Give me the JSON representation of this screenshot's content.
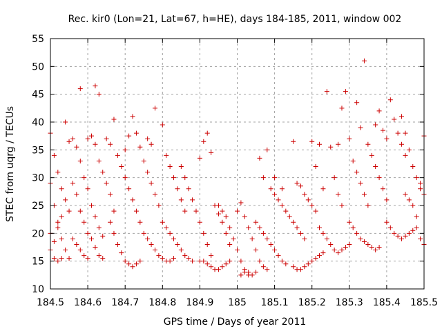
{
  "chart_data": {
    "type": "scatter",
    "title": "Rec. kir0 (Lon=21, Lat=67, h=HE), days 184-185, 2011, window 002",
    "xlabel": "GPS time / Days of year 2011",
    "ylabel": "STEC from uqrg / TECUs",
    "xlim": [
      184.5,
      185.5
    ],
    "ylim": [
      10,
      55
    ],
    "xticks": [
      "184.5",
      "184.6",
      "184.7",
      "184.8",
      "184.9",
      "185",
      "185.1",
      "185.2",
      "185.3",
      "185.4",
      "185.5"
    ],
    "yticks": [
      "10",
      "15",
      "20",
      "25",
      "30",
      "35",
      "40",
      "45",
      "50",
      "55"
    ],
    "grid": true,
    "marker": "plus",
    "point_color": "#cc0000",
    "series": [
      {
        "points": [
          [
            184.5,
            38
          ],
          [
            184.51,
            34
          ],
          [
            184.52,
            31
          ],
          [
            184.53,
            28
          ],
          [
            184.54,
            26
          ],
          [
            184.55,
            24
          ],
          [
            184.5,
            29
          ],
          [
            184.51,
            25
          ],
          [
            184.52,
            22
          ],
          [
            184.53,
            19
          ],
          [
            184.54,
            17
          ],
          [
            184.55,
            15.5
          ],
          [
            184.5,
            17
          ],
          [
            184.51,
            15.5
          ],
          [
            184.52,
            15
          ],
          [
            184.53,
            15.5
          ],
          [
            184.5,
            20
          ],
          [
            184.51,
            18.5
          ],
          [
            184.52,
            21
          ],
          [
            184.53,
            23
          ],
          [
            184.54,
            40
          ],
          [
            184.55,
            36.5
          ],
          [
            184.56,
            37
          ],
          [
            184.57,
            35.5
          ],
          [
            184.58,
            33
          ],
          [
            184.59,
            30
          ],
          [
            184.6,
            28
          ],
          [
            184.61,
            25
          ],
          [
            184.62,
            23
          ],
          [
            184.63,
            21
          ],
          [
            184.64,
            19.5
          ],
          [
            184.56,
            29
          ],
          [
            184.57,
            27
          ],
          [
            184.58,
            24
          ],
          [
            184.59,
            22
          ],
          [
            184.6,
            20
          ],
          [
            184.61,
            19
          ],
          [
            184.62,
            17.5
          ],
          [
            184.63,
            16
          ],
          [
            184.64,
            15.5
          ],
          [
            184.56,
            19
          ],
          [
            184.57,
            18
          ],
          [
            184.58,
            17
          ],
          [
            184.59,
            16
          ],
          [
            184.6,
            15.5
          ],
          [
            184.58,
            46
          ],
          [
            184.62,
            46.5
          ],
          [
            184.63,
            45
          ],
          [
            184.6,
            37
          ],
          [
            184.61,
            37.5
          ],
          [
            184.62,
            36
          ],
          [
            184.63,
            33
          ],
          [
            184.64,
            31
          ],
          [
            184.65,
            29
          ],
          [
            184.66,
            27
          ],
          [
            184.67,
            24
          ],
          [
            184.65,
            37
          ],
          [
            184.66,
            36
          ],
          [
            184.67,
            40.5
          ],
          [
            184.68,
            34
          ],
          [
            184.69,
            32
          ],
          [
            184.7,
            30
          ],
          [
            184.71,
            28
          ],
          [
            184.72,
            26
          ],
          [
            184.73,
            24
          ],
          [
            184.74,
            22
          ],
          [
            184.66,
            22
          ],
          [
            184.67,
            20
          ],
          [
            184.68,
            18
          ],
          [
            184.69,
            16.5
          ],
          [
            184.7,
            15
          ],
          [
            184.71,
            14.5
          ],
          [
            184.72,
            14
          ],
          [
            184.73,
            14.5
          ],
          [
            184.74,
            15
          ],
          [
            184.7,
            35
          ],
          [
            184.71,
            37.5
          ],
          [
            184.72,
            41
          ],
          [
            184.73,
            38
          ],
          [
            184.74,
            35.5
          ],
          [
            184.75,
            33
          ],
          [
            184.76,
            31
          ],
          [
            184.77,
            29
          ],
          [
            184.78,
            27
          ],
          [
            184.79,
            25
          ],
          [
            184.75,
            20
          ],
          [
            184.76,
            19
          ],
          [
            184.77,
            18
          ],
          [
            184.78,
            17
          ],
          [
            184.79,
            16
          ],
          [
            184.8,
            15.5
          ],
          [
            184.81,
            15
          ],
          [
            184.82,
            15
          ],
          [
            184.83,
            15.5
          ],
          [
            184.76,
            37
          ],
          [
            184.77,
            36
          ],
          [
            184.78,
            42.5
          ],
          [
            184.8,
            39.5
          ],
          [
            184.81,
            34
          ],
          [
            184.82,
            32
          ],
          [
            184.83,
            30
          ],
          [
            184.84,
            28
          ],
          [
            184.85,
            26
          ],
          [
            184.86,
            24
          ],
          [
            184.8,
            22
          ],
          [
            184.81,
            21
          ],
          [
            184.82,
            20
          ],
          [
            184.83,
            19
          ],
          [
            184.84,
            18
          ],
          [
            184.85,
            17
          ],
          [
            184.86,
            16
          ],
          [
            184.87,
            15.5
          ],
          [
            184.88,
            15
          ],
          [
            184.85,
            32
          ],
          [
            184.86,
            30
          ],
          [
            184.87,
            28
          ],
          [
            184.88,
            26
          ],
          [
            184.89,
            24
          ],
          [
            184.9,
            22
          ],
          [
            184.91,
            20
          ],
          [
            184.92,
            18
          ],
          [
            184.93,
            16
          ],
          [
            184.9,
            33.5
          ],
          [
            184.91,
            36.5
          ],
          [
            184.92,
            38
          ],
          [
            184.93,
            34.5
          ],
          [
            184.94,
            25
          ],
          [
            184.95,
            23.5
          ],
          [
            184.96,
            22
          ],
          [
            184.97,
            20
          ],
          [
            184.98,
            18
          ],
          [
            184.9,
            15
          ],
          [
            184.91,
            15
          ],
          [
            184.92,
            14.5
          ],
          [
            184.93,
            14
          ],
          [
            184.94,
            13.5
          ],
          [
            184.95,
            13.5
          ],
          [
            184.96,
            14
          ],
          [
            184.97,
            14.5
          ],
          [
            184.98,
            15
          ],
          [
            184.95,
            25
          ],
          [
            184.96,
            24
          ],
          [
            184.97,
            23
          ],
          [
            184.98,
            21
          ],
          [
            184.99,
            19
          ],
          [
            185.0,
            17
          ],
          [
            185.01,
            15
          ],
          [
            185.02,
            13.5
          ],
          [
            185.03,
            13
          ],
          [
            185.0,
            24
          ],
          [
            185.01,
            25.5
          ],
          [
            185.02,
            23
          ],
          [
            185.03,
            21
          ],
          [
            185.04,
            19
          ],
          [
            185.05,
            17
          ],
          [
            185.06,
            15
          ],
          [
            185.07,
            14
          ],
          [
            185.08,
            13.5
          ],
          [
            185.01,
            12.5
          ],
          [
            185.02,
            13
          ],
          [
            185.03,
            12.5
          ],
          [
            185.04,
            12.5
          ],
          [
            185.05,
            13
          ],
          [
            185.06,
            33.5
          ],
          [
            185.07,
            30
          ],
          [
            185.08,
            35
          ],
          [
            185.09,
            28
          ],
          [
            185.05,
            22
          ],
          [
            185.06,
            21
          ],
          [
            185.07,
            20
          ],
          [
            185.08,
            19
          ],
          [
            185.09,
            18
          ],
          [
            185.1,
            17
          ],
          [
            185.11,
            16
          ],
          [
            185.12,
            15
          ],
          [
            185.13,
            14.5
          ],
          [
            185.1,
            27
          ],
          [
            185.11,
            26
          ],
          [
            185.12,
            25
          ],
          [
            185.13,
            24
          ],
          [
            185.14,
            23
          ],
          [
            185.15,
            22
          ],
          [
            185.16,
            21
          ],
          [
            185.17,
            20
          ],
          [
            185.18,
            19
          ],
          [
            185.1,
            30
          ],
          [
            185.12,
            28
          ],
          [
            185.15,
            36.5
          ],
          [
            185.16,
            29
          ],
          [
            185.17,
            28.5
          ],
          [
            185.18,
            27
          ],
          [
            185.19,
            26
          ],
          [
            185.2,
            25
          ],
          [
            185.21,
            24
          ],
          [
            185.15,
            14
          ],
          [
            185.16,
            13.5
          ],
          [
            185.17,
            13.5
          ],
          [
            185.18,
            14
          ],
          [
            185.19,
            14.5
          ],
          [
            185.2,
            15
          ],
          [
            185.21,
            15.5
          ],
          [
            185.22,
            16
          ],
          [
            185.23,
            16.5
          ],
          [
            185.2,
            36.5
          ],
          [
            185.21,
            32
          ],
          [
            185.22,
            36
          ],
          [
            185.23,
            28
          ],
          [
            185.24,
            45.5
          ],
          [
            185.25,
            35.5
          ],
          [
            185.26,
            30
          ],
          [
            185.27,
            27
          ],
          [
            185.28,
            25
          ],
          [
            185.22,
            21
          ],
          [
            185.23,
            20
          ],
          [
            185.24,
            19
          ],
          [
            185.25,
            18
          ],
          [
            185.26,
            17
          ],
          [
            185.27,
            16.5
          ],
          [
            185.28,
            17
          ],
          [
            185.29,
            17.5
          ],
          [
            185.3,
            18
          ],
          [
            185.27,
            36
          ],
          [
            185.28,
            42.5
          ],
          [
            185.29,
            45.5
          ],
          [
            185.3,
            37
          ],
          [
            185.31,
            33
          ],
          [
            185.32,
            31
          ],
          [
            185.33,
            29
          ],
          [
            185.34,
            27
          ],
          [
            185.35,
            25
          ],
          [
            185.3,
            22
          ],
          [
            185.31,
            21
          ],
          [
            185.32,
            20
          ],
          [
            185.33,
            19
          ],
          [
            185.34,
            18.5
          ],
          [
            185.35,
            18
          ],
          [
            185.36,
            17.5
          ],
          [
            185.37,
            17
          ],
          [
            185.38,
            17.5
          ],
          [
            185.32,
            43.5
          ],
          [
            185.33,
            39
          ],
          [
            185.34,
            51
          ],
          [
            185.35,
            36
          ],
          [
            185.36,
            34
          ],
          [
            185.37,
            32
          ],
          [
            185.38,
            30
          ],
          [
            185.39,
            28
          ],
          [
            185.4,
            26
          ],
          [
            185.37,
            39.5
          ],
          [
            185.38,
            42
          ],
          [
            185.39,
            38.5
          ],
          [
            185.4,
            37
          ],
          [
            185.41,
            44
          ],
          [
            185.42,
            40.5
          ],
          [
            185.43,
            38
          ],
          [
            185.44,
            36
          ],
          [
            185.45,
            34
          ],
          [
            185.4,
            22
          ],
          [
            185.41,
            21
          ],
          [
            185.42,
            20
          ],
          [
            185.43,
            19.5
          ],
          [
            185.44,
            19
          ],
          [
            185.45,
            19.5
          ],
          [
            185.46,
            20
          ],
          [
            185.47,
            20.5
          ],
          [
            185.48,
            21
          ],
          [
            185.44,
            41
          ],
          [
            185.45,
            38
          ],
          [
            185.46,
            35
          ],
          [
            185.47,
            32
          ],
          [
            185.48,
            30
          ],
          [
            185.49,
            28
          ],
          [
            185.5,
            27
          ],
          [
            185.49,
            29
          ],
          [
            185.5,
            37.5
          ],
          [
            185.45,
            27
          ],
          [
            185.46,
            26
          ],
          [
            185.47,
            25
          ],
          [
            185.48,
            23
          ],
          [
            185.49,
            19
          ],
          [
            185.5,
            18
          ]
        ]
      }
    ]
  }
}
